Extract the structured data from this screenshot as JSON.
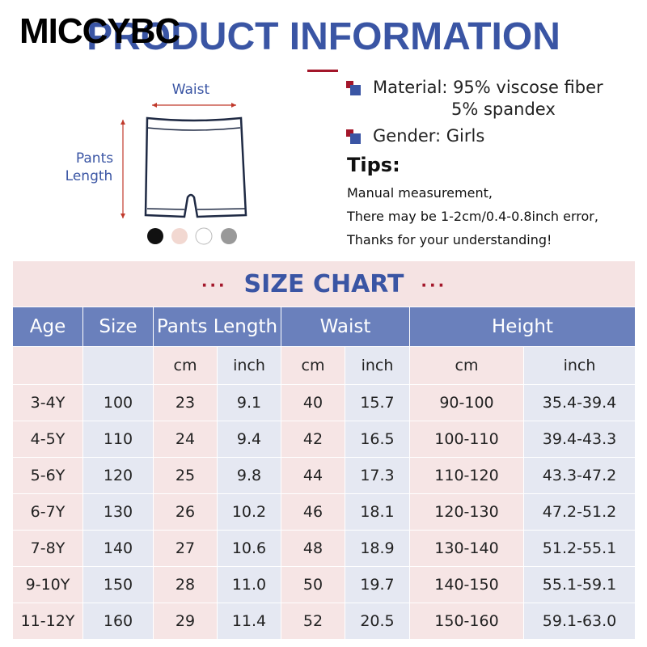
{
  "brand": "MICCYBC",
  "header": {
    "title": "PRODUCT INFORMATION"
  },
  "diagram": {
    "waist_label": "Waist",
    "length_label": [
      "Pants",
      "Length"
    ]
  },
  "info": {
    "material": [
      "Material: 95% viscose fiber",
      "5% spandex"
    ],
    "gender": "Gender: Girls"
  },
  "tips": {
    "title": "Tips:",
    "lines": [
      "Manual measurement,",
      "There may be 1-2cm/0.4-0.8inch error,",
      "Thanks for your understanding!"
    ]
  },
  "table": {
    "title": "SIZE CHART",
    "headers": [
      "Age",
      "Size",
      "Pants Length",
      "Waist",
      "Height"
    ],
    "units": [
      "cm",
      "inch",
      "cm",
      "inch",
      "cm",
      "inch"
    ],
    "rows": [
      [
        "3-4Y",
        "100",
        "23",
        "9.1",
        "40",
        "15.7",
        "90-100",
        "35.4-39.4"
      ],
      [
        "4-5Y",
        "110",
        "24",
        "9.4",
        "42",
        "16.5",
        "100-110",
        "39.4-43.3"
      ],
      [
        "5-6Y",
        "120",
        "25",
        "9.8",
        "44",
        "17.3",
        "110-120",
        "43.3-47.2"
      ],
      [
        "6-7Y",
        "130",
        "26",
        "10.2",
        "46",
        "18.1",
        "120-130",
        "47.2-51.2"
      ],
      [
        "7-8Y",
        "140",
        "27",
        "10.6",
        "48",
        "18.9",
        "130-140",
        "51.2-55.1"
      ],
      [
        "9-10Y",
        "150",
        "28",
        "11.0",
        "50",
        "19.7",
        "140-150",
        "55.1-59.1"
      ],
      [
        "11-12Y",
        "160",
        "29",
        "11.4",
        "52",
        "20.5",
        "150-160",
        "59.1-63.0"
      ]
    ]
  }
}
